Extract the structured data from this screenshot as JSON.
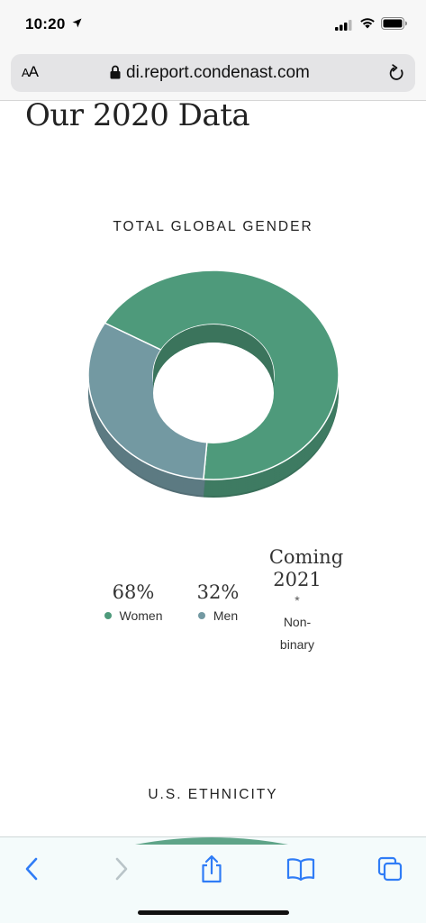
{
  "status_bar": {
    "time": "10:20"
  },
  "browser": {
    "aa_label_small": "A",
    "aa_label_large": "A",
    "url": "di.report.condenast.com"
  },
  "page": {
    "title": "Our 2020 Data"
  },
  "chart_data": {
    "type": "pie",
    "title": "TOTAL GLOBAL GENDER",
    "categories": [
      "Women",
      "Men"
    ],
    "values": [
      68,
      32
    ],
    "value_labels": [
      "68%",
      "32%"
    ],
    "colors": [
      "#4e9a7b",
      "#7399a2"
    ],
    "donut": true,
    "legend": "bottom"
  },
  "legend": {
    "women_pct": "68%",
    "women_label": "Women",
    "men_pct": "32%",
    "men_label": "Men",
    "coming_line1": "Coming",
    "coming_line2": "2021",
    "asterisk": "*",
    "nonbinary_line1": "Non-",
    "nonbinary_line2": "binary"
  },
  "next_section": {
    "title": "U.S. ETHNICITY"
  },
  "colors": {
    "women": "#4e9a7b",
    "men": "#7399a2",
    "ios_blue": "#2f7cf6"
  },
  "icons": [
    "location-arrow-icon",
    "signal-icon",
    "wifi-icon",
    "battery-icon",
    "lock-icon",
    "reload-icon",
    "back-icon",
    "forward-icon",
    "share-icon",
    "bookmarks-icon",
    "tabs-icon"
  ]
}
